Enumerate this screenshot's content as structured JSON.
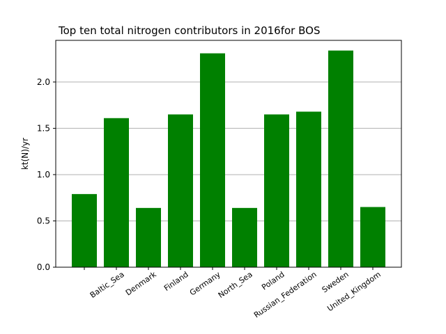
{
  "chart_data": {
    "type": "bar",
    "title": "Top ten total nitrogen contributors in 2016for  BOS",
    "xlabel": "",
    "ylabel": "kt(N)/yr",
    "categories": [
      "",
      "Baltic_Sea",
      "Denmark",
      "Finland",
      "Germany",
      "North_Sea",
      "Poland",
      "Russian_Federation",
      "Sweden",
      "United_Kingdom"
    ],
    "values": [
      0.79,
      1.61,
      0.64,
      1.65,
      2.31,
      0.64,
      1.65,
      1.68,
      2.34,
      0.65
    ],
    "ylim": [
      0,
      2.45
    ],
    "yticks": [
      "0.0",
      "0.5",
      "1.0",
      "1.5",
      "2.0"
    ],
    "grid": "y",
    "bar_color": "#008000",
    "grid_color": "#b0b0b0"
  }
}
